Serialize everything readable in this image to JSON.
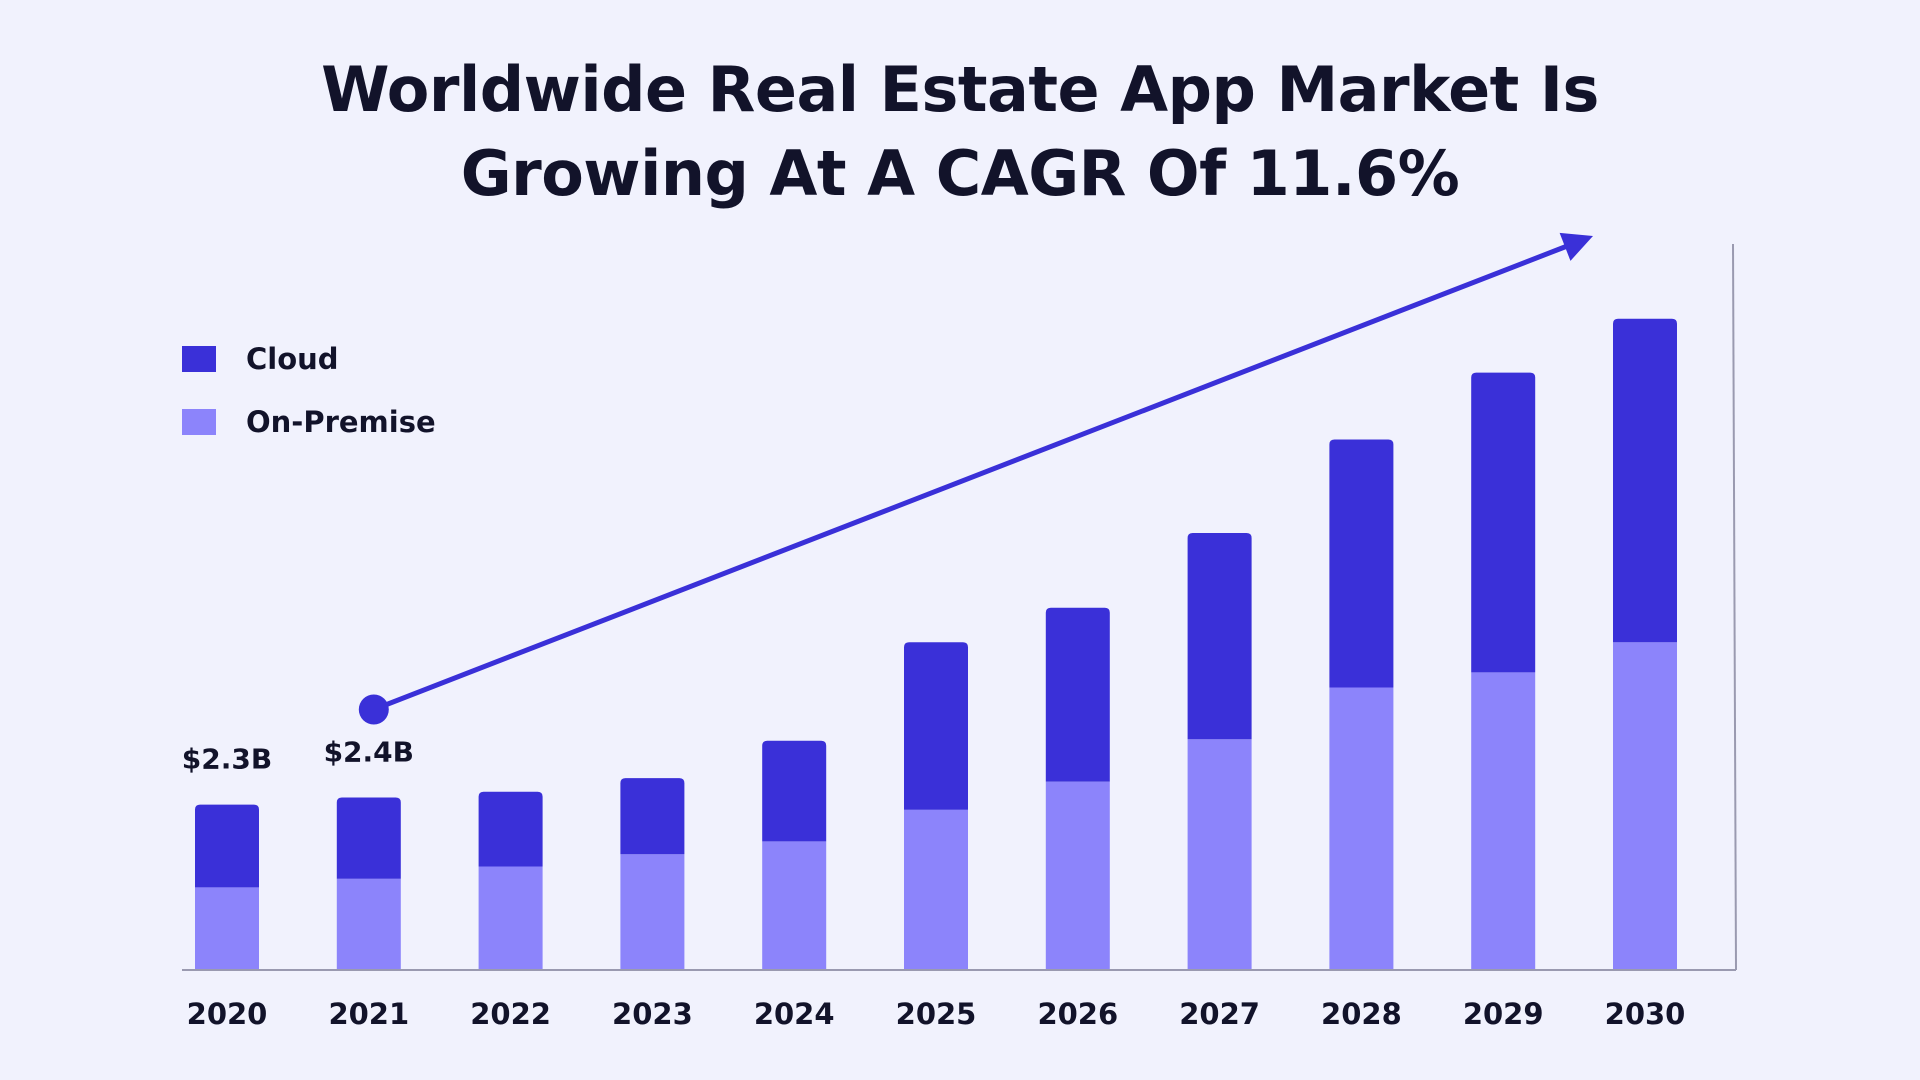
{
  "chart_data": {
    "type": "bar",
    "stacked": true,
    "title": "Worldwide Real Estate App Market Is Growing At A CAGR Of 11.6%",
    "categories": [
      "2020",
      "2021",
      "2022",
      "2023",
      "2024",
      "2025",
      "2026",
      "2027",
      "2028",
      "2029",
      "2030"
    ],
    "series": [
      {
        "name": "On-Premise",
        "color": "#8c84fb",
        "values": [
          1.15,
          1.27,
          1.44,
          1.61,
          1.79,
          2.23,
          2.62,
          3.21,
          3.93,
          4.14,
          4.56
        ]
      },
      {
        "name": "Cloud",
        "color": "#3a30d8",
        "values": [
          1.15,
          1.13,
          1.04,
          1.06,
          1.4,
          2.33,
          2.42,
          2.87,
          3.45,
          4.17,
          4.5
        ]
      }
    ],
    "data_labels": [
      {
        "category": "2020",
        "text": "$2.3B"
      },
      {
        "category": "2021",
        "text": "$2.4B"
      }
    ],
    "trend_arrow": {
      "from_category": "2021",
      "to_category": "2030",
      "color": "#3a30d8"
    },
    "legend": {
      "position": "top-left",
      "order": [
        "Cloud",
        "On-Premise"
      ]
    },
    "xlabel": "",
    "ylabel": "",
    "ylim": [
      0,
      10.1
    ],
    "grid": false,
    "axis_color": "#9a9ab0"
  }
}
